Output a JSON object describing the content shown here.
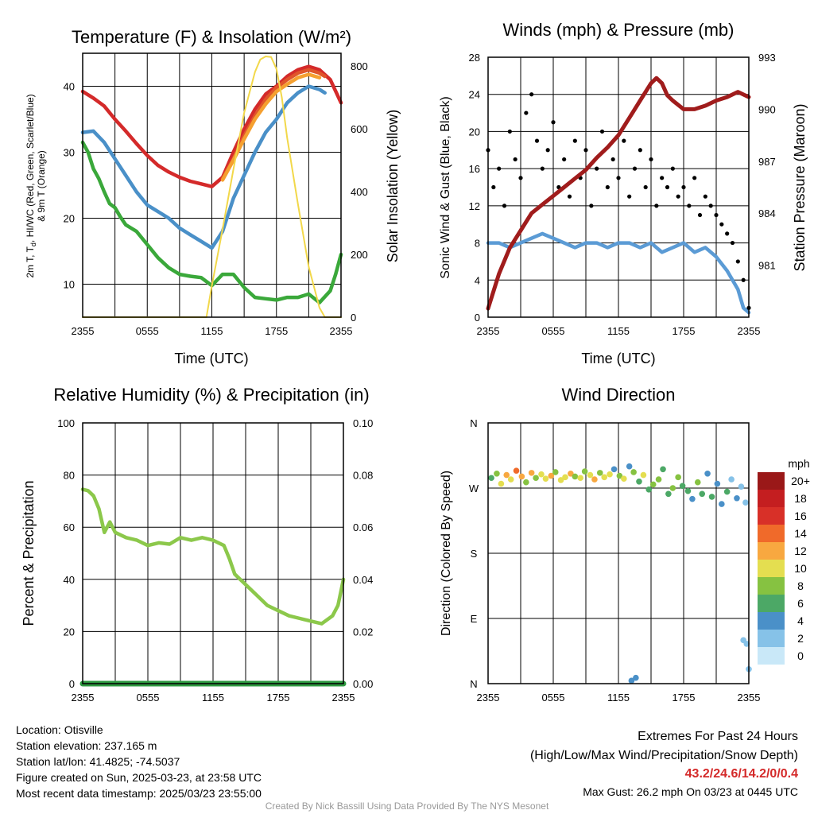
{
  "panels": {
    "temperature": {
      "title": "Temperature (F) & Insolation (W/m²)",
      "xlabel": "Time (UTC)",
      "ylabel_left": [
        "2m T, T",
        "d",
        ", HI/WC (Red, Green, Scarlet/Blue)",
        "& 9m T (Orange)"
      ],
      "ylabel_right": "Solar Insolation (Yellow)"
    },
    "winds": {
      "title": "Winds (mph) & Pressure (mb)",
      "xlabel": "Time (UTC)",
      "ylabel_left": "Sonic Wind & Gust (Blue, Black)",
      "ylabel_right": "Station Pressure (Maroon)"
    },
    "humidity": {
      "title": "Relative Humidity (%) & Precipitation (in)",
      "ylabel_left": "Percent & Precipitation"
    },
    "direction": {
      "title": "Wind Direction",
      "ylabel_left": "Direction (Colored By Speed)",
      "colorbar_title": "mph"
    }
  },
  "info": {
    "location": "Location: Otisville",
    "elevation": "Station elevation: 237.165 m",
    "latlon": "Station lat/lon: 41.4825; -74.5037",
    "created": "Figure created on Sun, 2025-03-23, at 23:58 UTC",
    "recent": "Most recent data timestamp: 2025/03/23 23:55:00"
  },
  "extremes": {
    "title": "Extremes For Past 24 Hours",
    "subtitle": "(High/Low/Max Wind/Precipitation/Snow Depth)",
    "values": "43.2/24.6/14.2/0/0.4",
    "max_gust": "Max Gust: 26.2 mph On 03/23 at 0445 UTC"
  },
  "credit": "Created By Nick Bassill Using Data Provided By The NYS Mesonet",
  "colors": {
    "temp": "#d42a2a",
    "dewpoint": "#3aa83a",
    "heat_index": "#e0552a",
    "wind_chill": "#4a90c8",
    "temp9m": "#f5a030",
    "insolation": "#f2d84a",
    "wind": "#5b9bd5",
    "gust": "#000000",
    "pressure": "#a01c1c",
    "rh": "#8cc84b",
    "precip": "#2e9a40"
  },
  "chart_data": [
    {
      "type": "line",
      "id": "temperature",
      "x_ticks": [
        "2355",
        "0555",
        "1155",
        "1755",
        "2355"
      ],
      "x_hours": [
        0,
        6,
        12,
        18,
        24
      ],
      "ylim": [
        5,
        45
      ],
      "y_ticks": [
        10,
        20,
        30,
        40
      ],
      "y2lim": [
        0,
        840
      ],
      "y2_ticks": [
        0,
        200,
        400,
        600,
        800
      ],
      "series": [
        {
          "key": "temp",
          "axis": "left",
          "x": [
            0,
            1,
            2,
            3,
            4,
            5,
            6,
            7,
            8,
            9,
            10,
            11,
            12,
            13,
            14,
            15,
            16,
            17,
            18,
            19,
            20,
            21,
            22,
            23,
            24
          ],
          "y": [
            39.2,
            38.2,
            37,
            35,
            33.2,
            31.3,
            29.5,
            28,
            27,
            26.2,
            25.6,
            25.2,
            24.8,
            26.2,
            30,
            33.5,
            36.5,
            38.8,
            40,
            41.5,
            42.5,
            43,
            42.5,
            41,
            37.5
          ]
        },
        {
          "key": "heat_index",
          "axis": "left",
          "x": [
            13,
            14,
            15,
            16,
            17,
            18,
            19,
            20,
            21,
            22,
            22.5
          ],
          "y": [
            26,
            29,
            32.5,
            35.5,
            38,
            39.8,
            41,
            42,
            42.5,
            42,
            41.5
          ]
        },
        {
          "key": "temp9m",
          "axis": "left",
          "x": [
            13,
            14,
            15,
            16,
            17,
            18,
            19,
            20,
            21,
            22
          ],
          "y": [
            25.8,
            28.8,
            32,
            35,
            37.3,
            39.2,
            40.3,
            41.3,
            41.8,
            41.3
          ]
        },
        {
          "key": "wind_chill",
          "axis": "left",
          "x": [
            0,
            1,
            2,
            3,
            4,
            5,
            6,
            7,
            8,
            9,
            10,
            11,
            12,
            13,
            14,
            15,
            16,
            17,
            18,
            19,
            20,
            21,
            22,
            22.5
          ],
          "y": [
            33,
            33.2,
            31.5,
            29,
            26.5,
            24,
            22,
            21,
            20,
            18.5,
            17.5,
            16.5,
            15.5,
            18,
            23,
            26.5,
            30,
            33,
            35,
            37.5,
            39,
            40,
            39.5,
            39
          ]
        },
        {
          "key": "dewpoint",
          "axis": "left",
          "x": [
            0,
            0.5,
            1,
            1.5,
            2,
            2.5,
            3,
            3.5,
            4,
            5,
            6,
            7,
            8,
            9,
            10,
            11,
            12,
            13,
            14,
            15,
            16,
            17,
            18,
            19,
            20,
            21,
            22,
            23,
            23.5,
            24
          ],
          "y": [
            31.5,
            30,
            27.5,
            26,
            24,
            22.2,
            21.6,
            20.2,
            19,
            18,
            16,
            14,
            12.5,
            11.5,
            11.2,
            11,
            9.8,
            11.5,
            11.5,
            9.5,
            8,
            7.8,
            7.6,
            8,
            8,
            8.5,
            7.2,
            9,
            11.5,
            14.5
          ]
        },
        {
          "key": "insolation",
          "axis": "right",
          "x": [
            0,
            11.5,
            12,
            13,
            14,
            15,
            16,
            16.5,
            17,
            17.5,
            18,
            18.5,
            19,
            20,
            21,
            22,
            22.5,
            24
          ],
          "y": [
            0,
            0,
            100,
            280,
            470,
            650,
            780,
            820,
            830,
            828,
            790,
            700,
            570,
            360,
            160,
            30,
            0,
            0
          ]
        }
      ]
    },
    {
      "type": "line",
      "id": "winds",
      "x_ticks": [
        "2355",
        "0555",
        "1155",
        "1755",
        "2355"
      ],
      "x_hours": [
        0,
        6,
        12,
        18,
        24
      ],
      "ylim": [
        0,
        28
      ],
      "y_ticks": [
        0,
        4,
        8,
        12,
        16,
        20,
        24,
        28
      ],
      "y2lim": [
        978,
        993
      ],
      "y2_ticks": [
        981,
        984,
        987,
        990,
        993
      ],
      "series": [
        {
          "key": "wind",
          "axis": "left",
          "x": [
            0,
            1,
            2,
            3,
            4,
            5,
            6,
            7,
            8,
            9,
            10,
            11,
            12,
            13,
            14,
            15,
            16,
            17,
            18,
            19,
            20,
            21,
            22,
            23,
            23.5,
            24
          ],
          "y": [
            8,
            8,
            7.5,
            8,
            8.5,
            9,
            8.5,
            8,
            7.5,
            8,
            8,
            7.5,
            8,
            8,
            7.5,
            8,
            7,
            7.5,
            8,
            7,
            7.5,
            6.5,
            5,
            3,
            1,
            0.5
          ]
        },
        {
          "key": "gust",
          "axis": "left",
          "type": "scatter",
          "x": [
            0,
            0.5,
            1,
            1.5,
            2,
            2.5,
            3,
            3.5,
            4,
            4.5,
            5,
            5.5,
            6,
            6.5,
            7,
            7.5,
            8,
            8.5,
            9,
            9.5,
            10,
            10.5,
            11,
            11.5,
            12,
            12.5,
            13,
            13.5,
            14,
            14.5,
            15,
            15.5,
            16,
            16.5,
            17,
            17.5,
            18,
            18.5,
            19,
            19.5,
            20,
            20.5,
            21,
            21.5,
            22,
            22.5,
            23,
            23.5,
            24
          ],
          "y": [
            18,
            14,
            16,
            12,
            20,
            17,
            15,
            22,
            24,
            19,
            16,
            18,
            21,
            14,
            17,
            13,
            19,
            15,
            18,
            12,
            16,
            20,
            14,
            17,
            15,
            19,
            13,
            16,
            18,
            14,
            17,
            12,
            15,
            14,
            16,
            13,
            14,
            12,
            15,
            11,
            13,
            12,
            11,
            10,
            9,
            8,
            6,
            4,
            1
          ]
        },
        {
          "key": "pressure",
          "axis": "right",
          "x": [
            0,
            1,
            2,
            3,
            4,
            5,
            6,
            7,
            8,
            9,
            10,
            11,
            12,
            13,
            14,
            15,
            15.5,
            16,
            16.5,
            17,
            18,
            19,
            20,
            21,
            22,
            23,
            24
          ],
          "y": [
            978.5,
            980.5,
            982,
            983,
            984,
            984.5,
            985,
            985.5,
            986,
            986.5,
            987.2,
            987.8,
            988.5,
            989.5,
            990.5,
            991.5,
            991.8,
            991.5,
            990.8,
            990.5,
            990,
            990,
            990.2,
            990.5,
            990.7,
            991,
            990.7
          ]
        }
      ]
    },
    {
      "type": "line",
      "id": "humidity",
      "x_ticks": [
        "2355",
        "0555",
        "1155",
        "1755",
        "2355"
      ],
      "x_hours": [
        0,
        6,
        12,
        18,
        24
      ],
      "ylim": [
        0,
        100
      ],
      "y_ticks": [
        0,
        20,
        40,
        60,
        80,
        100
      ],
      "y2lim": [
        0,
        0.1
      ],
      "y2_ticks": [
        "0.00",
        "0.02",
        "0.04",
        "0.06",
        "0.08",
        "0.10"
      ],
      "series": [
        {
          "key": "rh",
          "axis": "left",
          "x": [
            0,
            0.5,
            1,
            1.5,
            2,
            2.5,
            3,
            4,
            5,
            6,
            7,
            8,
            9,
            10,
            11,
            12,
            13,
            13.5,
            14,
            15,
            16,
            17,
            18,
            19,
            20,
            21,
            22,
            23,
            23.5,
            24
          ],
          "y": [
            74.5,
            74,
            72,
            67,
            58,
            62,
            58,
            56,
            55,
            53,
            54,
            53.5,
            56,
            55,
            56,
            55,
            53,
            48,
            42,
            38,
            34,
            30,
            28,
            26,
            25,
            24,
            23,
            26,
            30,
            40
          ]
        },
        {
          "key": "precip",
          "axis": "right",
          "x": [
            0,
            24
          ],
          "y": [
            0,
            0
          ]
        }
      ]
    },
    {
      "type": "scatter",
      "id": "direction",
      "x_ticks": [
        "2355",
        "0555",
        "1155",
        "1755",
        "2355"
      ],
      "x_hours": [
        0,
        6,
        12,
        18,
        24
      ],
      "y_ticks": [
        "N",
        "E",
        "S",
        "W",
        "N"
      ],
      "ylim": [
        0,
        360
      ],
      "colorbar": {
        "labels": [
          "0",
          "2",
          "4",
          "6",
          "8",
          "10",
          "12",
          "14",
          "16",
          "18",
          "20+"
        ],
        "colors": [
          "#c9e8f8",
          "#86c2e8",
          "#4a90c8",
          "#4ca866",
          "#86c241",
          "#e4de50",
          "#f8a840",
          "#f06a2a",
          "#d83028",
          "#c41e20",
          "#9a1818"
        ]
      },
      "points_speed_classes": "colored by wind speed",
      "x": [
        0.3,
        0.8,
        1.2,
        1.7,
        2.1,
        2.6,
        3.1,
        3.5,
        4,
        4.4,
        4.9,
        5.3,
        5.8,
        6.2,
        6.7,
        7.1,
        7.6,
        8,
        8.5,
        8.9,
        9.4,
        9.8,
        10.3,
        10.7,
        11.2,
        11.6,
        12.1,
        12.5,
        13,
        13.4,
        13.9,
        14.3,
        14.8,
        15.2,
        15.7,
        16.1,
        16.6,
        17,
        17.5,
        17.9,
        18.4,
        18.8,
        19.3,
        19.7,
        20.2,
        20.6,
        21.1,
        21.5,
        22,
        22.4,
        22.9,
        23.3,
        23.7,
        13.2,
        13.6,
        23.5,
        23.8,
        24
      ],
      "y": [
        284,
        290,
        276,
        288,
        282,
        294,
        286,
        278,
        291,
        284,
        289,
        283,
        287,
        292,
        281,
        285,
        290,
        286,
        284,
        293,
        288,
        282,
        291,
        285,
        289,
        296,
        287,
        283,
        300,
        292,
        279,
        288,
        268,
        275,
        282,
        296,
        262,
        270,
        285,
        273,
        266,
        255,
        278,
        262,
        290,
        258,
        276,
        248,
        265,
        282,
        256,
        272,
        250,
        4,
        8,
        60,
        55,
        20
      ],
      "speeds": [
        6,
        8,
        10,
        12,
        9,
        13,
        11,
        7,
        12,
        8,
        10,
        9,
        11,
        8,
        10,
        9,
        12,
        7,
        10,
        8,
        9,
        11,
        8,
        10,
        9,
        4,
        7,
        9,
        4,
        8,
        6,
        9,
        5,
        7,
        8,
        6,
        5,
        7,
        8,
        5,
        6,
        4,
        7,
        5,
        3,
        6,
        4,
        3,
        5,
        2,
        3,
        2,
        1,
        4,
        4,
        1,
        1,
        1
      ]
    }
  ]
}
